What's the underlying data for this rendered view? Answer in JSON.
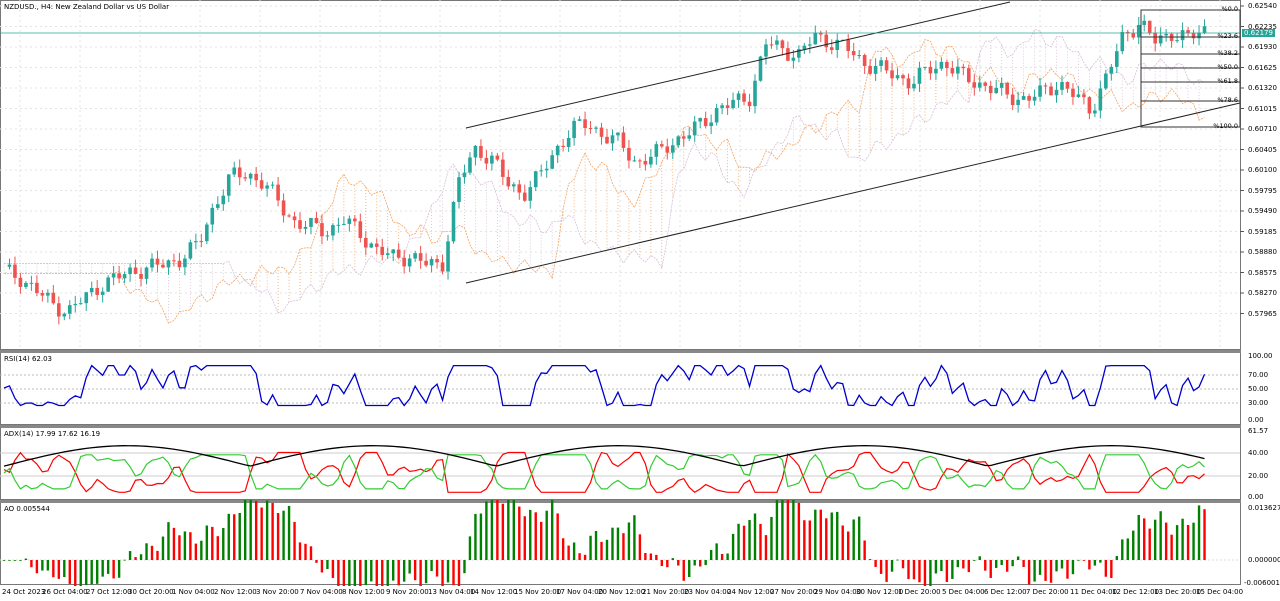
{
  "header": {
    "title": "NZDUSD., H4:  New Zealand Dollar vs US Dollar"
  },
  "main_pane": {
    "price_axis": [
      "0.62540",
      "0.62235",
      "0.61930",
      "0.61625",
      "0.61320",
      "0.61015",
      "0.60710",
      "0.60405",
      "0.60100",
      "0.59795",
      "0.59490",
      "0.59185",
      "0.58880",
      "0.58575",
      "0.58270",
      "0.57965"
    ],
    "current_price": "0.62179",
    "fibonacci_levels": [
      "%0.0",
      "%23.6",
      "%38.2",
      "%50.0",
      "%61.8",
      "%78.6",
      "%100.0"
    ]
  },
  "rsi_pane": {
    "title": "RSI(14) 62.03",
    "axis": [
      "100.00",
      "70.00",
      "50.00",
      "30.00",
      "0.00"
    ]
  },
  "adx_pane": {
    "title": "ADX(14) 17.99 17.62 16.19",
    "axis": [
      "61.57",
      "40.00",
      "20.00",
      "0.00"
    ]
  },
  "ao_pane": {
    "title": "AO 0.005544",
    "axis": [
      "0.013627",
      "0.000000",
      "-0.006001"
    ]
  },
  "time_axis": [
    "24 Oct 2023",
    "26 Oct 04:00",
    "27 Oct 12:00",
    "30 Oct 20:00",
    "1 Nov 04:00",
    "2 Nov 12:00",
    "3 Nov 20:00",
    "7 Nov 04:00",
    "8 Nov 12:00",
    "9 Nov 20:00",
    "13 Nov 04:00",
    "14 Nov 12:00",
    "15 Nov 20:00",
    "17 Nov 04:00",
    "20 Nov 12:00",
    "21 Nov 20:00",
    "23 Nov 04:00",
    "24 Nov 12:00",
    "27 Nov 20:00",
    "29 Nov 04:00",
    "30 Nov 12:00",
    "1 Dec 20:00",
    "5 Dec 04:00",
    "6 Dec 12:00",
    "7 Dec 20:00",
    "11 Dec 04:00",
    "12 Dec 12:00",
    "13 Dec 20:00",
    "15 Dec 04:00"
  ],
  "colors": {
    "bull": "#26a69a",
    "bear": "#ef5350",
    "rsi": "#0000cc",
    "adx": "#000000",
    "plus_di": "#33cc33",
    "minus_di": "#ff0000",
    "ao_up": "#008000",
    "ao_down": "#ff0000",
    "cloud_a": "#f4a460",
    "cloud_b": "#d8bfd8"
  },
  "chart_data": [
    {
      "type": "candlestick",
      "title": "NZDUSD., H4: New Zealand Dollar vs US Dollar",
      "ylim": [
        0.578,
        0.626
      ],
      "x_start": "24 Oct 2023",
      "x_end": "15 Dec 04:00",
      "close_approx": [
        0.586,
        0.585,
        0.583,
        0.581,
        0.58,
        0.582,
        0.584,
        0.585,
        0.586,
        0.5865,
        0.587,
        0.588,
        0.59,
        0.596,
        0.6,
        0.6005,
        0.599,
        0.596,
        0.593,
        0.5925,
        0.592,
        0.5935,
        0.5915,
        0.589,
        0.588,
        0.5882,
        0.587,
        0.5868,
        0.599,
        0.604,
        0.603,
        0.599,
        0.5975,
        0.6,
        0.604,
        0.607,
        0.608,
        0.606,
        0.605,
        0.602,
        0.603,
        0.605,
        0.606,
        0.608,
        0.61,
        0.611,
        0.612,
        0.62,
        0.619,
        0.618,
        0.621,
        0.62,
        0.619,
        0.617,
        0.616,
        0.615,
        0.614,
        0.616,
        0.617,
        0.615,
        0.614,
        0.613,
        0.612,
        0.6115,
        0.6125,
        0.614,
        0.612,
        0.61,
        0.615,
        0.621,
        0.623,
        0.62,
        0.6215,
        0.6205,
        0.6219
      ],
      "annotations": [
        "ascending channel",
        "Ichimoku cloud",
        "Fibonacci retracement 0.6254-0.6080",
        "current price 0.62179"
      ]
    },
    {
      "type": "line",
      "title": "RSI(14) 62.03",
      "ylim": [
        0,
        100
      ],
      "levels": [
        70,
        50,
        30
      ],
      "last": 62.03
    },
    {
      "type": "line",
      "title": "ADX(14) 17.99 17.62 16.19",
      "ylim": [
        0,
        61.57
      ],
      "series": [
        {
          "name": "ADX",
          "last": 17.99
        },
        {
          "name": "+DI",
          "last": 17.62
        },
        {
          "name": "-DI",
          "last": 16.19
        }
      ],
      "levels": [
        40,
        20
      ]
    },
    {
      "type": "bar",
      "title": "AO 0.005544",
      "ylim": [
        -0.006001,
        0.013627
      ],
      "last": 0.005544
    }
  ]
}
